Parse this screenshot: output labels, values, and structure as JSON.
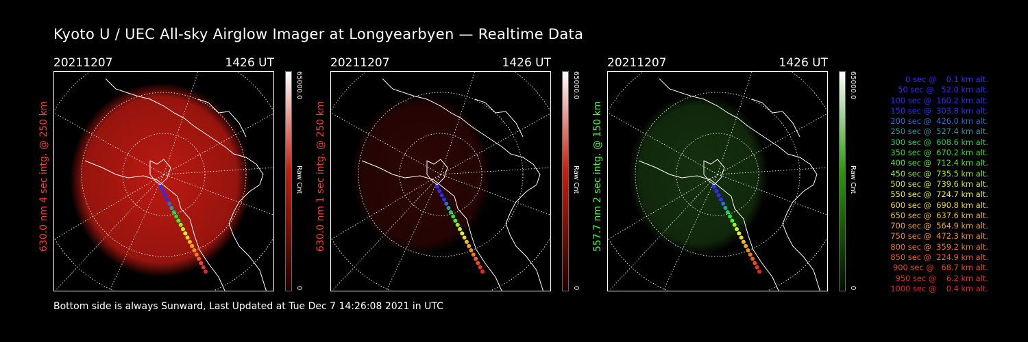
{
  "title": "Kyoto U / UEC All-sky Airglow Imager at Longyearbyen — Realtime Data",
  "footer": "Bottom side is always Sunward, Last Updated at Tue Dec  7 14:26:08 2021 in UTC",
  "panels": [
    {
      "date": "20211207",
      "time": "1426 UT",
      "label": "630.0 nm 4 sec intg. @ 250 km",
      "label_color": "#ff3b2f",
      "cbar_max": "65000.0",
      "cbar_unit": "Raw Cnt",
      "cbar_min": "0",
      "cbar_color": "#c81e0a",
      "glow": "red",
      "intensity": 0.85
    },
    {
      "date": "20211207",
      "time": "1426 UT",
      "label": "630.0 nm 1 sec intg. @ 250 km",
      "label_color": "#ff3b2f",
      "cbar_max": "65000.0",
      "cbar_unit": "Raw Cnt",
      "cbar_min": "0",
      "cbar_color": "#c81e0a",
      "glow": "red",
      "intensity": 0.2
    },
    {
      "date": "20211207",
      "time": "1426 UT",
      "label": "557.7 nm 2 sec intg. @ 150 km",
      "label_color": "#3cff3c",
      "cbar_max": "65000.0",
      "cbar_unit": "Raw Cnt",
      "cbar_min": "0",
      "cbar_color": "#2a9a0a",
      "glow": "green",
      "intensity": 0.35
    }
  ],
  "legend": [
    {
      "text": "   0 sec @    0.1 km alt.",
      "color": "#2b2bff"
    },
    {
      "text": "  50 sec @   52.0 km alt.",
      "color": "#2b2bff"
    },
    {
      "text": " 100 sec @  160.2 km alt.",
      "color": "#2b2bff"
    },
    {
      "text": " 150 sec @  303.8 km alt.",
      "color": "#2b2bff"
    },
    {
      "text": " 200 sec @  426.0 km alt.",
      "color": "#2b6bd0"
    },
    {
      "text": " 250 sec @  527.4 km alt.",
      "color": "#2a9aa0"
    },
    {
      "text": " 300 sec @  608.6 km alt.",
      "color": "#1ed35a"
    },
    {
      "text": " 350 sec @  670.2 km alt.",
      "color": "#22e030"
    },
    {
      "text": " 400 sec @  712.4 km alt.",
      "color": "#50ee20"
    },
    {
      "text": " 450 sec @  735.5 km alt.",
      "color": "#90f020"
    },
    {
      "text": " 500 sec @  739.6 km alt.",
      "color": "#c8f020"
    },
    {
      "text": " 550 sec @  724.7 km alt.",
      "color": "#f0f020"
    },
    {
      "text": " 600 sec @  690.8 km alt.",
      "color": "#f0d820"
    },
    {
      "text": " 650 sec @  637.6 km alt.",
      "color": "#f0c020"
    },
    {
      "text": " 700 sec @  564.9 km alt.",
      "color": "#f0a820"
    },
    {
      "text": " 750 sec @  472.3 km alt.",
      "color": "#f09020"
    },
    {
      "text": " 800 sec @  359.2 km alt.",
      "color": "#f07820"
    },
    {
      "text": " 850 sec @  224.9 km alt.",
      "color": "#f06020"
    },
    {
      "text": " 900 sec @   68.7 km alt.",
      "color": "#f04820"
    },
    {
      "text": " 950 sec @    6.2 km alt.",
      "color": "#f03020"
    },
    {
      "text": "1000 sec @    0.4 km alt.",
      "color": "#f02020"
    }
  ]
}
